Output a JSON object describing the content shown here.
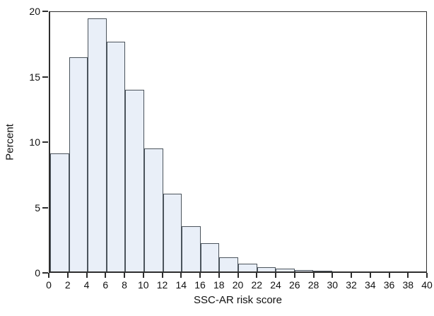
{
  "figure": {
    "background": "#ffffff",
    "text_color": "#111111"
  },
  "chart_data": {
    "type": "bar",
    "subtype": "histogram",
    "title": "",
    "xlabel": "SSC-AR risk score",
    "ylabel": "Percent",
    "xlim": [
      0,
      40
    ],
    "ylim": [
      0,
      20
    ],
    "x_ticks": [
      0,
      2,
      4,
      6,
      8,
      10,
      12,
      14,
      16,
      18,
      20,
      22,
      24,
      26,
      28,
      30,
      32,
      34,
      36,
      38,
      40
    ],
    "y_ticks": [
      0,
      5,
      10,
      15,
      20
    ],
    "bin_width": 2,
    "categories": [
      "0-2",
      "2-4",
      "4-6",
      "6-8",
      "8-10",
      "10-12",
      "12-14",
      "14-16",
      "16-18",
      "18-20",
      "20-22",
      "22-24",
      "24-26",
      "26-28",
      "28-30",
      "30-32",
      "32-34",
      "34-36",
      "36-38",
      "38-40"
    ],
    "values": [
      9.1,
      16.5,
      19.5,
      17.7,
      14.0,
      9.5,
      6.0,
      3.5,
      2.2,
      1.1,
      0.6,
      0.35,
      0.2,
      0.1,
      0.05,
      0,
      0,
      0,
      0,
      0
    ],
    "grid": false,
    "legend": false,
    "bar_fill": "#e9eff8",
    "bar_stroke": "#4b545c",
    "axis_color": "#2e2e2e"
  }
}
